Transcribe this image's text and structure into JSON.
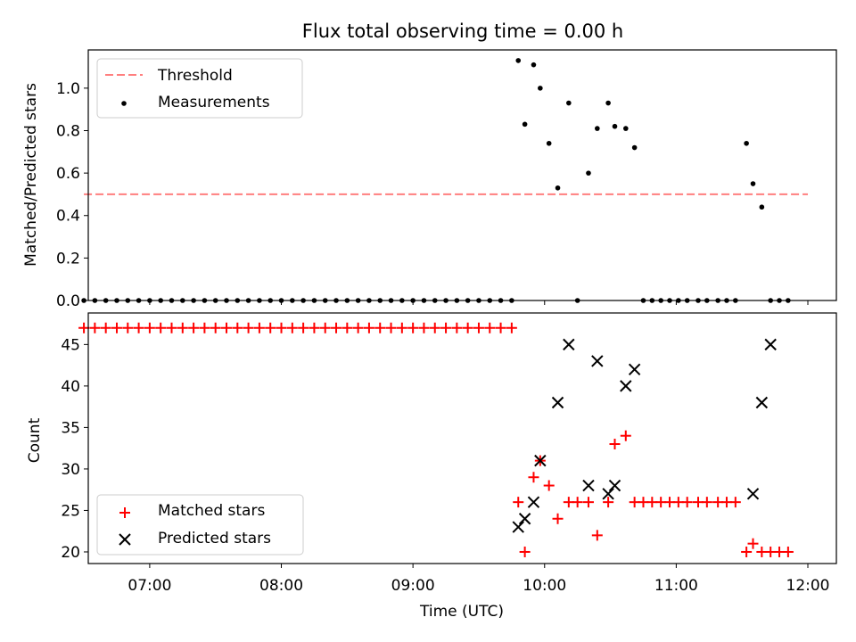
{
  "title": "Flux total observing time = 0.00 h",
  "colors": {
    "threshold": "#ff7f7f",
    "measurement": "#000000",
    "matched": "#ff0000",
    "predicted": "#000000"
  },
  "chart_data": [
    {
      "type": "scatter",
      "panel": "top",
      "ylabel": "Matched/Predicted stars",
      "xlim": [
        "06:32",
        "12:13"
      ],
      "ylim": [
        0,
        1.18
      ],
      "yticks": [
        "0.0",
        "0.2",
        "0.4",
        "0.6",
        "0.8",
        "1.0"
      ],
      "legend": {
        "placement": "top-left",
        "entries": [
          "Threshold",
          "Measurements"
        ]
      },
      "threshold": {
        "name": "Threshold",
        "value": 0.5,
        "x_start": "06:30",
        "x_end": "12:00"
      },
      "measurements": {
        "name": "Measurements",
        "x": [
          "06:30",
          "06:35",
          "06:40",
          "06:45",
          "06:50",
          "06:55",
          "07:00",
          "07:05",
          "07:10",
          "07:15",
          "07:20",
          "07:25",
          "07:30",
          "07:35",
          "07:40",
          "07:45",
          "07:50",
          "07:55",
          "08:00",
          "08:05",
          "08:10",
          "08:15",
          "08:20",
          "08:25",
          "08:30",
          "08:35",
          "08:40",
          "08:45",
          "08:50",
          "08:55",
          "09:00",
          "09:05",
          "09:10",
          "09:15",
          "09:20",
          "09:25",
          "09:30",
          "09:35",
          "09:40",
          "09:45",
          "09:48",
          "09:51",
          "09:55",
          "09:58",
          "10:02",
          "10:06",
          "10:11",
          "10:15",
          "10:20",
          "10:24",
          "10:29",
          "10:32",
          "10:37",
          "10:41",
          "10:45",
          "10:49",
          "10:53",
          "10:57",
          "11:01",
          "11:05",
          "11:10",
          "11:14",
          "11:19",
          "11:23",
          "11:27",
          "11:32",
          "11:35",
          "11:39",
          "11:43",
          "11:47",
          "11:51"
        ],
        "y": [
          0,
          0,
          0,
          0,
          0,
          0,
          0,
          0,
          0,
          0,
          0,
          0,
          0,
          0,
          0,
          0,
          0,
          0,
          0,
          0,
          0,
          0,
          0,
          0,
          0,
          0,
          0,
          0,
          0,
          0,
          0,
          0,
          0,
          0,
          0,
          0,
          0,
          0,
          0,
          0,
          1.13,
          0.83,
          1.11,
          1.0,
          0.74,
          0.53,
          0.93,
          0,
          0.6,
          0.81,
          0.93,
          0.82,
          0.81,
          0.72,
          0,
          0,
          0,
          0,
          0,
          0,
          0,
          0,
          0,
          0,
          0,
          0.74,
          0.55,
          0.44,
          0,
          0,
          0
        ]
      }
    },
    {
      "type": "scatter",
      "panel": "bottom",
      "xlabel": "Time (UTC)",
      "ylabel": "Count",
      "xlim": [
        "06:32",
        "12:13"
      ],
      "ylim": [
        18.6,
        48.8
      ],
      "xticks": [
        "07:00",
        "08:00",
        "09:00",
        "10:00",
        "11:00",
        "12:00"
      ],
      "yticks": [
        "20",
        "25",
        "30",
        "35",
        "40",
        "45"
      ],
      "legend": {
        "placement": "bottom-left",
        "entries": [
          "Matched stars",
          "Predicted stars"
        ]
      },
      "matched": {
        "name": "Matched stars",
        "x": [
          "06:30",
          "06:35",
          "06:40",
          "06:45",
          "06:50",
          "06:55",
          "07:00",
          "07:05",
          "07:10",
          "07:15",
          "07:20",
          "07:25",
          "07:30",
          "07:35",
          "07:40",
          "07:45",
          "07:50",
          "07:55",
          "08:00",
          "08:05",
          "08:10",
          "08:15",
          "08:20",
          "08:25",
          "08:30",
          "08:35",
          "08:40",
          "08:45",
          "08:50",
          "08:55",
          "09:00",
          "09:05",
          "09:10",
          "09:15",
          "09:20",
          "09:25",
          "09:30",
          "09:35",
          "09:40",
          "09:45",
          "09:48",
          "09:51",
          "09:55",
          "09:58",
          "10:02",
          "10:06",
          "10:11",
          "10:15",
          "10:20",
          "10:24",
          "10:29",
          "10:32",
          "10:37",
          "10:41",
          "10:45",
          "10:49",
          "10:53",
          "10:57",
          "11:01",
          "11:05",
          "11:10",
          "11:14",
          "11:19",
          "11:23",
          "11:27",
          "11:32",
          "11:35",
          "11:39",
          "11:43",
          "11:47",
          "11:51"
        ],
        "y": [
          47,
          47,
          47,
          47,
          47,
          47,
          47,
          47,
          47,
          47,
          47,
          47,
          47,
          47,
          47,
          47,
          47,
          47,
          47,
          47,
          47,
          47,
          47,
          47,
          47,
          47,
          47,
          47,
          47,
          47,
          47,
          47,
          47,
          47,
          47,
          47,
          47,
          47,
          47,
          47,
          26,
          20,
          29,
          31,
          28,
          24,
          26,
          26,
          26,
          22,
          26,
          33,
          34,
          26,
          26,
          26,
          26,
          26,
          26,
          26,
          26,
          26,
          26,
          26,
          26,
          20,
          21,
          20,
          20,
          20,
          20
        ]
      },
      "predicted": {
        "name": "Predicted stars",
        "x": [
          "09:48",
          "09:51",
          "09:55",
          "09:58",
          "10:06",
          "10:11",
          "10:20",
          "10:24",
          "10:29",
          "10:32",
          "10:37",
          "10:41",
          "11:35",
          "11:39",
          "11:43"
        ],
        "y": [
          23,
          24,
          26,
          31,
          38,
          45,
          28,
          43,
          27,
          28,
          40,
          42,
          27,
          38,
          45
        ]
      }
    }
  ]
}
